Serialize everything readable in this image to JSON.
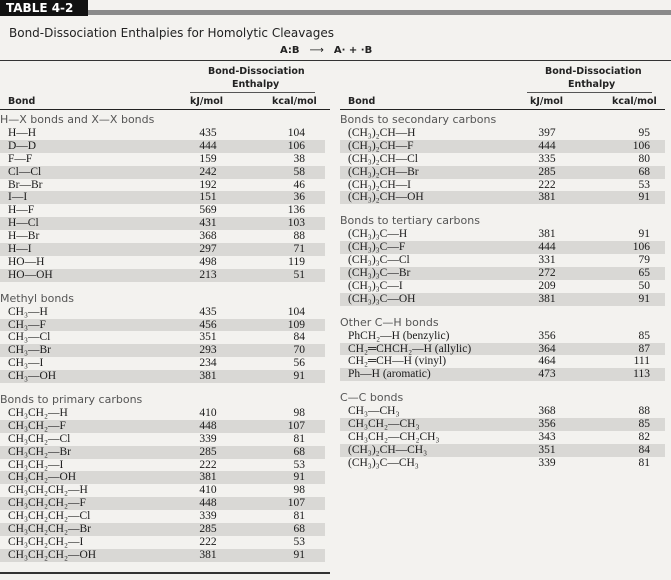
{
  "table_label": "TABLE 4-2",
  "title": "Bond-Dissociation Enthalpies for Homolytic Cleavages",
  "equation": {
    "left": "A:B",
    "arrow": "⟶",
    "right": "A· + ·B"
  },
  "header": {
    "bond": "Bond",
    "group": "Bond-Dissociation",
    "group2": "Enthalpy",
    "kj": "kJ/mol",
    "kcal": "kcal/mol"
  },
  "left_sections": [
    {
      "heading": "H—X bonds and X—X bonds",
      "rows": [
        [
          "H—H",
          "435",
          "104"
        ],
        [
          "D—D",
          "444",
          "106"
        ],
        [
          "F—F",
          "159",
          "38"
        ],
        [
          "Cl—Cl",
          "242",
          "58"
        ],
        [
          "Br—Br",
          "192",
          "46"
        ],
        [
          "I—I",
          "151",
          "36"
        ],
        [
          "H—F",
          "569",
          "136"
        ],
        [
          "H—Cl",
          "431",
          "103"
        ],
        [
          "H—Br",
          "368",
          "88"
        ],
        [
          "H—I",
          "297",
          "71"
        ],
        [
          "HO—H",
          "498",
          "119"
        ],
        [
          "HO—OH",
          "213",
          "51"
        ]
      ]
    },
    {
      "heading": "Methyl bonds",
      "rows": [
        [
          "CH₃—H",
          "435",
          "104"
        ],
        [
          "CH₃—F",
          "456",
          "109"
        ],
        [
          "CH₃—Cl",
          "351",
          "84"
        ],
        [
          "CH₃—Br",
          "293",
          "70"
        ],
        [
          "CH₃—I",
          "234",
          "56"
        ],
        [
          "CH₃—OH",
          "381",
          "91"
        ]
      ]
    },
    {
      "heading": "Bonds to primary carbons",
      "rows": [
        [
          "CH₃CH₂—H",
          "410",
          "98"
        ],
        [
          "CH₃CH₂—F",
          "448",
          "107"
        ],
        [
          "CH₃CH₂—Cl",
          "339",
          "81"
        ],
        [
          "CH₃CH₂—Br",
          "285",
          "68"
        ],
        [
          "CH₃CH₂—I",
          "222",
          "53"
        ],
        [
          "CH₃CH₂—OH",
          "381",
          "91"
        ],
        [
          "CH₃CH₂CH₂—H",
          "410",
          "98"
        ],
        [
          "CH₃CH₂CH₂—F",
          "448",
          "107"
        ],
        [
          "CH₃CH₂CH₂—Cl",
          "339",
          "81"
        ],
        [
          "CH₃CH₂CH₂—Br",
          "285",
          "68"
        ],
        [
          "CH₃CH₂CH₂—I",
          "222",
          "53"
        ],
        [
          "CH₃CH₂CH₂—OH",
          "381",
          "91"
        ]
      ]
    }
  ],
  "right_sections": [
    {
      "heading": "Bonds to secondary carbons",
      "rows": [
        [
          "(CH₃)₂CH—H",
          "397",
          "95"
        ],
        [
          "(CH₃)₂CH—F",
          "444",
          "106"
        ],
        [
          "(CH₃)₂CH—Cl",
          "335",
          "80"
        ],
        [
          "(CH₃)₂CH—Br",
          "285",
          "68"
        ],
        [
          "(CH₃)₂CH—I",
          "222",
          "53"
        ],
        [
          "(CH₃)₂CH—OH",
          "381",
          "91"
        ]
      ]
    },
    {
      "heading": "Bonds to tertiary carbons",
      "rows": [
        [
          "(CH₃)₃C—H",
          "381",
          "91"
        ],
        [
          "(CH₃)₃C—F",
          "444",
          "106"
        ],
        [
          "(CH₃)₃C—Cl",
          "331",
          "79"
        ],
        [
          "(CH₃)₃C—Br",
          "272",
          "65"
        ],
        [
          "(CH₃)₃C—I",
          "209",
          "50"
        ],
        [
          "(CH₃)₃C—OH",
          "381",
          "91"
        ]
      ]
    },
    {
      "heading": "Other C—H bonds",
      "rows": [
        [
          "PhCH₂—H (benzylic)",
          "356",
          "85"
        ],
        [
          "CH₂═CHCH₂—H (allylic)",
          "364",
          "87"
        ],
        [
          "CH₂═CH—H (vinyl)",
          "464",
          "111"
        ],
        [
          "Ph—H (aromatic)",
          "473",
          "113"
        ]
      ]
    },
    {
      "heading": "C—C bonds",
      "rows": [
        [
          "CH₃—CH₃",
          "368",
          "88"
        ],
        [
          "CH₃CH₂—CH₃",
          "356",
          "85"
        ],
        [
          "CH₃CH₂—CH₂CH₃",
          "343",
          "82"
        ],
        [
          "(CH₃)₂CH—CH₃",
          "351",
          "84"
        ],
        [
          "(CH₃)₃C—CH₃",
          "339",
          "81"
        ]
      ]
    }
  ]
}
